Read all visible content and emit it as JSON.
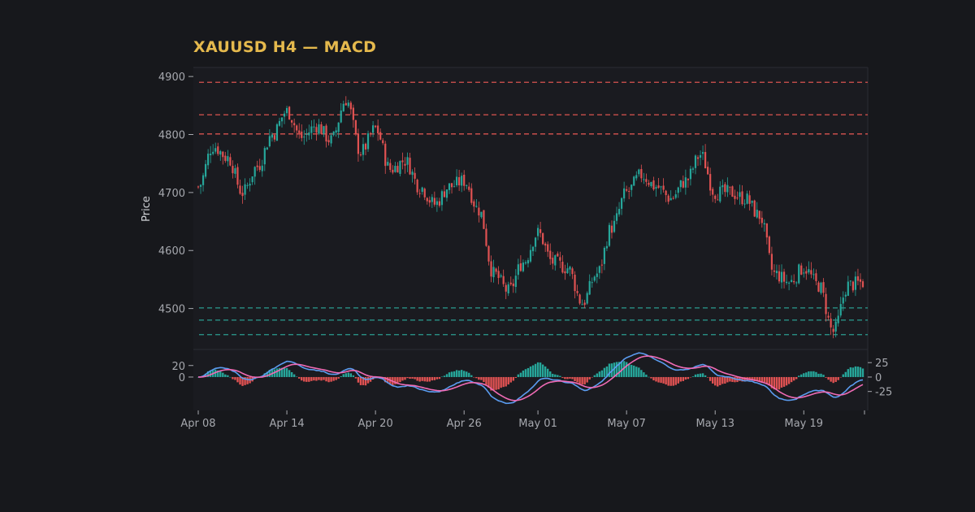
{
  "chart_data": {
    "type": "candlestick",
    "title": "XAUUSD H4 — MACD",
    "colors": {
      "background": "#17181c",
      "panel": "#1a1b20",
      "up": "#26a69a",
      "down": "#e05252",
      "resistance": "#d9534f",
      "support": "#2a9d8f",
      "macd_line": "#5b9cf0",
      "signal_line": "#f06bb5",
      "title": "#e5b94d"
    },
    "price_panel": {
      "ylabel": "Price",
      "ylim": [
        4435,
        4910
      ],
      "yticks": [
        4500,
        4600,
        4700,
        4800,
        4900
      ],
      "resistance_levels": [
        4890,
        4834,
        4801
      ],
      "support_levels": [
        4501,
        4480,
        4455
      ]
    },
    "macd_panel": {
      "ylim": [
        -55,
        45
      ],
      "left_yticks": [
        20,
        0
      ],
      "right_yticks": [
        25,
        0,
        -25
      ]
    },
    "x_axis": {
      "type": "date",
      "start": "2026-04-08",
      "end": "2026-05-23",
      "tick_labels": [
        "Apr 08",
        "Apr 14",
        "Apr 20",
        "Apr 26",
        "May 01",
        "May 07",
        "May 13",
        "May 19"
      ]
    },
    "price_anchors": [
      [
        "2026-04-08",
        4710
      ],
      [
        "2026-04-09",
        4780
      ],
      [
        "2026-04-10",
        4760
      ],
      [
        "2026-04-11",
        4700
      ],
      [
        "2026-04-12",
        4745
      ],
      [
        "2026-04-13",
        4800
      ],
      [
        "2026-04-14",
        4840
      ],
      [
        "2026-04-15",
        4795
      ],
      [
        "2026-04-16",
        4815
      ],
      [
        "2026-04-17",
        4790
      ],
      [
        "2026-04-18",
        4860
      ],
      [
        "2026-04-19",
        4770
      ],
      [
        "2026-04-20",
        4810
      ],
      [
        "2026-04-21",
        4740
      ],
      [
        "2026-04-22",
        4755
      ],
      [
        "2026-04-23",
        4710
      ],
      [
        "2026-04-24",
        4680
      ],
      [
        "2026-04-25",
        4710
      ],
      [
        "2026-04-26",
        4720
      ],
      [
        "2026-04-27",
        4670
      ],
      [
        "2026-04-28",
        4560
      ],
      [
        "2026-04-29",
        4530
      ],
      [
        "2026-04-30",
        4580
      ],
      [
        "2026-05-01",
        4630
      ],
      [
        "2026-05-02",
        4580
      ],
      [
        "2026-05-03",
        4570
      ],
      [
        "2026-05-04",
        4510
      ],
      [
        "2026-05-05",
        4560
      ],
      [
        "2026-05-06",
        4640
      ],
      [
        "2026-05-07",
        4700
      ],
      [
        "2026-05-08",
        4730
      ],
      [
        "2026-05-09",
        4710
      ],
      [
        "2026-05-10",
        4690
      ],
      [
        "2026-05-11",
        4720
      ],
      [
        "2026-05-12",
        4765
      ],
      [
        "2026-05-13",
        4700
      ],
      [
        "2026-05-14",
        4700
      ],
      [
        "2026-05-15",
        4690
      ],
      [
        "2026-05-16",
        4660
      ],
      [
        "2026-05-17",
        4560
      ],
      [
        "2026-05-18",
        4545
      ],
      [
        "2026-05-19",
        4570
      ],
      [
        "2026-05-20",
        4540
      ],
      [
        "2026-05-21",
        4460
      ],
      [
        "2026-05-22",
        4540
      ],
      [
        "2026-05-23",
        4545
      ]
    ]
  }
}
